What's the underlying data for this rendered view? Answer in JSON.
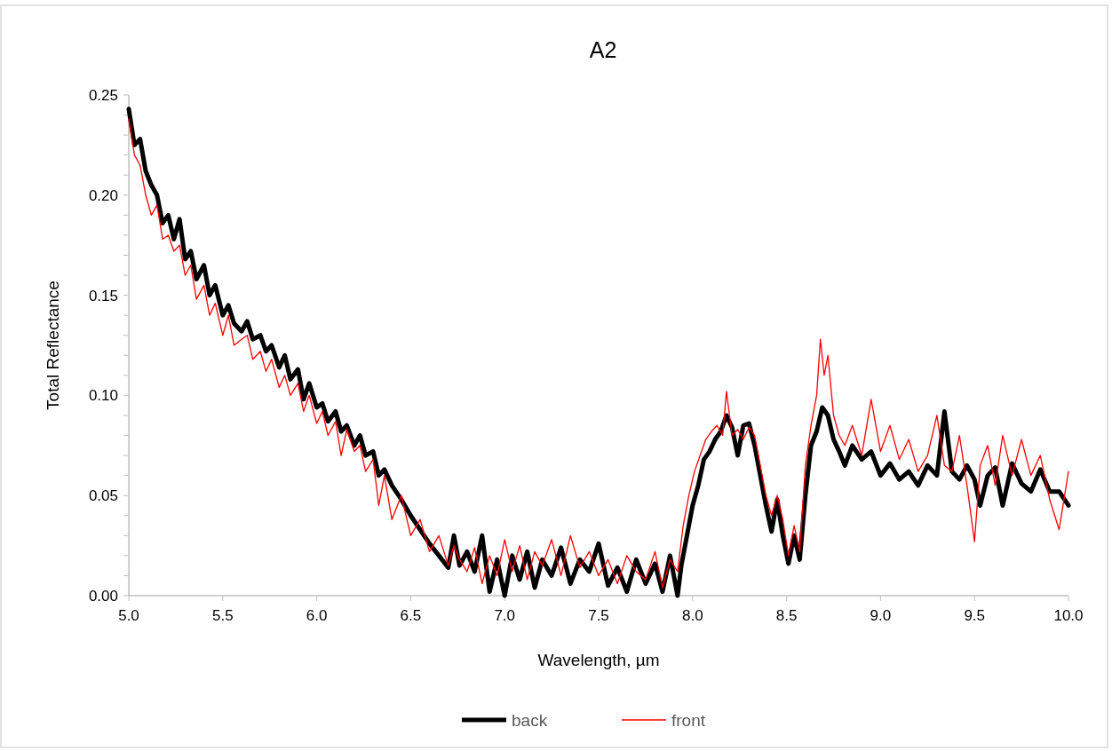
{
  "chart_data": {
    "type": "line",
    "title": "A2",
    "xlabel": "Wavelength, µm",
    "ylabel": "Total Reflectance",
    "xlim": [
      5.0,
      10.0
    ],
    "xticks": [
      {
        "value": 5.0,
        "label": "5.0"
      },
      {
        "value": 5.5,
        "label": "5.5"
      },
      {
        "value": 6.0,
        "label": "6.0"
      },
      {
        "value": 6.5,
        "label": "6.5"
      },
      {
        "value": 7.0,
        "label": "7.0"
      },
      {
        "value": 7.5,
        "label": "7.5"
      },
      {
        "value": 8.0,
        "label": "8.0"
      },
      {
        "value": 8.5,
        "label": "8.5"
      },
      {
        "value": 9.0,
        "label": "9.0"
      },
      {
        "value": 9.5,
        "label": "9.5"
      },
      {
        "value": 10.0,
        "label": "10.0"
      }
    ],
    "ylim": [
      0,
      0.25
    ],
    "yticks": [
      {
        "value": 0,
        "label": "0.00"
      },
      {
        "value": 0.01,
        "label": null
      },
      {
        "value": 0.02,
        "label": null
      },
      {
        "value": 0.03,
        "label": null
      },
      {
        "value": 0.04,
        "label": null
      },
      {
        "value": 0.05,
        "label": "0.05"
      },
      {
        "value": 0.06,
        "label": null
      },
      {
        "value": 0.07,
        "label": null
      },
      {
        "value": 0.08,
        "label": null
      },
      {
        "value": 0.09,
        "label": null
      },
      {
        "value": 0.1,
        "label": "0.10"
      },
      {
        "value": 0.11,
        "label": null
      },
      {
        "value": 0.12,
        "label": null
      },
      {
        "value": 0.13,
        "label": null
      },
      {
        "value": 0.14,
        "label": null
      },
      {
        "value": 0.15,
        "label": "0.15"
      },
      {
        "value": 0.16,
        "label": null
      },
      {
        "value": 0.17,
        "label": null
      },
      {
        "value": 0.18,
        "label": null
      },
      {
        "value": 0.19,
        "label": null
      },
      {
        "value": 0.2,
        "label": "0.20"
      },
      {
        "value": 0.21,
        "label": null
      },
      {
        "value": 0.22,
        "label": null
      },
      {
        "value": 0.23,
        "label": null
      },
      {
        "value": 0.24,
        "label": null
      },
      {
        "value": 0.25,
        "label": "0.25"
      }
    ],
    "grid": false,
    "legend": "bottom",
    "line_style": "solid",
    "series": [
      {
        "name": "back",
        "color": "#000000",
        "x": [
          5.0,
          5.03,
          5.06,
          5.09,
          5.12,
          5.15,
          5.18,
          5.21,
          5.24,
          5.27,
          5.3,
          5.33,
          5.36,
          5.4,
          5.43,
          5.46,
          5.5,
          5.53,
          5.56,
          5.6,
          5.63,
          5.66,
          5.7,
          5.73,
          5.76,
          5.8,
          5.83,
          5.86,
          5.9,
          5.93,
          5.96,
          6.0,
          6.03,
          6.06,
          6.1,
          6.13,
          6.16,
          6.2,
          6.23,
          6.26,
          6.3,
          6.33,
          6.36,
          6.4,
          6.45,
          6.5,
          6.55,
          6.6,
          6.65,
          6.7,
          6.73,
          6.76,
          6.8,
          6.84,
          6.88,
          6.92,
          6.96,
          7.0,
          7.04,
          7.08,
          7.12,
          7.16,
          7.2,
          7.25,
          7.3,
          7.35,
          7.4,
          7.45,
          7.5,
          7.55,
          7.6,
          7.65,
          7.7,
          7.75,
          7.8,
          7.84,
          7.88,
          7.92,
          7.94,
          7.97,
          8.0,
          8.03,
          8.06,
          8.09,
          8.12,
          8.15,
          8.18,
          8.21,
          8.24,
          8.27,
          8.3,
          8.33,
          8.36,
          8.39,
          8.42,
          8.45,
          8.48,
          8.51,
          8.54,
          8.57,
          8.6,
          8.63,
          8.66,
          8.69,
          8.72,
          8.75,
          8.78,
          8.81,
          8.85,
          8.9,
          8.95,
          9.0,
          9.05,
          9.1,
          9.15,
          9.2,
          9.25,
          9.3,
          9.34,
          9.38,
          9.42,
          9.46,
          9.5,
          9.53,
          9.57,
          9.61,
          9.65,
          9.7,
          9.75,
          9.8,
          9.85,
          9.9,
          9.95,
          10.0
        ],
        "values": [
          0.243,
          0.225,
          0.228,
          0.212,
          0.205,
          0.2,
          0.186,
          0.19,
          0.178,
          0.188,
          0.168,
          0.172,
          0.158,
          0.165,
          0.15,
          0.155,
          0.14,
          0.145,
          0.136,
          0.132,
          0.137,
          0.128,
          0.13,
          0.122,
          0.125,
          0.114,
          0.12,
          0.108,
          0.113,
          0.098,
          0.106,
          0.094,
          0.096,
          0.087,
          0.092,
          0.082,
          0.085,
          0.075,
          0.08,
          0.07,
          0.072,
          0.06,
          0.063,
          0.055,
          0.048,
          0.04,
          0.033,
          0.026,
          0.02,
          0.014,
          0.03,
          0.015,
          0.022,
          0.012,
          0.03,
          0.002,
          0.018,
          0.0,
          0.02,
          0.008,
          0.022,
          0.004,
          0.018,
          0.01,
          0.024,
          0.006,
          0.018,
          0.012,
          0.026,
          0.005,
          0.014,
          0.002,
          0.018,
          0.006,
          0.016,
          0.002,
          0.02,
          0.0,
          0.015,
          0.03,
          0.045,
          0.055,
          0.068,
          0.072,
          0.078,
          0.082,
          0.09,
          0.084,
          0.07,
          0.085,
          0.086,
          0.075,
          0.06,
          0.045,
          0.032,
          0.048,
          0.03,
          0.016,
          0.03,
          0.018,
          0.05,
          0.075,
          0.082,
          0.094,
          0.09,
          0.078,
          0.072,
          0.065,
          0.075,
          0.068,
          0.072,
          0.06,
          0.066,
          0.058,
          0.062,
          0.055,
          0.065,
          0.06,
          0.092,
          0.062,
          0.058,
          0.065,
          0.058,
          0.045,
          0.06,
          0.064,
          0.045,
          0.066,
          0.056,
          0.052,
          0.063,
          0.052,
          0.052,
          0.045
        ]
      },
      {
        "name": "front",
        "color": "#ff0000",
        "x": [
          5.0,
          5.03,
          5.06,
          5.09,
          5.12,
          5.15,
          5.18,
          5.21,
          5.24,
          5.27,
          5.3,
          5.33,
          5.36,
          5.4,
          5.43,
          5.46,
          5.5,
          5.53,
          5.56,
          5.6,
          5.63,
          5.66,
          5.7,
          5.73,
          5.76,
          5.8,
          5.83,
          5.86,
          5.9,
          5.93,
          5.96,
          6.0,
          6.03,
          6.06,
          6.1,
          6.13,
          6.16,
          6.2,
          6.23,
          6.26,
          6.3,
          6.33,
          6.36,
          6.4,
          6.45,
          6.5,
          6.55,
          6.6,
          6.65,
          6.7,
          6.73,
          6.76,
          6.8,
          6.84,
          6.88,
          6.92,
          6.96,
          7.0,
          7.04,
          7.08,
          7.12,
          7.16,
          7.2,
          7.25,
          7.3,
          7.35,
          7.4,
          7.45,
          7.5,
          7.55,
          7.6,
          7.65,
          7.7,
          7.75,
          7.8,
          7.84,
          7.88,
          7.92,
          7.95,
          7.98,
          8.01,
          8.04,
          8.07,
          8.1,
          8.13,
          8.16,
          8.18,
          8.21,
          8.24,
          8.27,
          8.3,
          8.33,
          8.36,
          8.39,
          8.42,
          8.45,
          8.48,
          8.51,
          8.54,
          8.57,
          8.6,
          8.63,
          8.66,
          8.68,
          8.7,
          8.72,
          8.75,
          8.78,
          8.81,
          8.85,
          8.9,
          8.95,
          9.0,
          9.05,
          9.1,
          9.15,
          9.2,
          9.25,
          9.3,
          9.34,
          9.38,
          9.42,
          9.46,
          9.5,
          9.53,
          9.57,
          9.61,
          9.65,
          9.7,
          9.75,
          9.8,
          9.85,
          9.9,
          9.95,
          10.0
        ],
        "values": [
          0.238,
          0.22,
          0.215,
          0.2,
          0.19,
          0.195,
          0.178,
          0.18,
          0.172,
          0.175,
          0.16,
          0.165,
          0.148,
          0.155,
          0.14,
          0.146,
          0.13,
          0.14,
          0.125,
          0.128,
          0.13,
          0.118,
          0.122,
          0.112,
          0.118,
          0.104,
          0.11,
          0.1,
          0.106,
          0.092,
          0.1,
          0.086,
          0.092,
          0.08,
          0.087,
          0.07,
          0.083,
          0.072,
          0.075,
          0.062,
          0.068,
          0.045,
          0.06,
          0.038,
          0.05,
          0.03,
          0.038,
          0.022,
          0.03,
          0.015,
          0.025,
          0.018,
          0.012,
          0.024,
          0.006,
          0.02,
          0.01,
          0.028,
          0.012,
          0.025,
          0.008,
          0.022,
          0.015,
          0.028,
          0.01,
          0.03,
          0.014,
          0.022,
          0.01,
          0.018,
          0.006,
          0.02,
          0.012,
          0.008,
          0.022,
          0.004,
          0.018,
          0.012,
          0.035,
          0.05,
          0.062,
          0.07,
          0.078,
          0.082,
          0.085,
          0.08,
          0.102,
          0.08,
          0.083,
          0.078,
          0.084,
          0.08,
          0.065,
          0.05,
          0.04,
          0.05,
          0.038,
          0.02,
          0.035,
          0.022,
          0.065,
          0.085,
          0.1,
          0.128,
          0.11,
          0.12,
          0.09,
          0.08,
          0.075,
          0.085,
          0.07,
          0.098,
          0.072,
          0.085,
          0.068,
          0.078,
          0.062,
          0.07,
          0.09,
          0.065,
          0.062,
          0.08,
          0.055,
          0.027,
          0.065,
          0.075,
          0.055,
          0.08,
          0.06,
          0.078,
          0.06,
          0.07,
          0.048,
          0.033,
          0.062
        ]
      }
    ]
  }
}
